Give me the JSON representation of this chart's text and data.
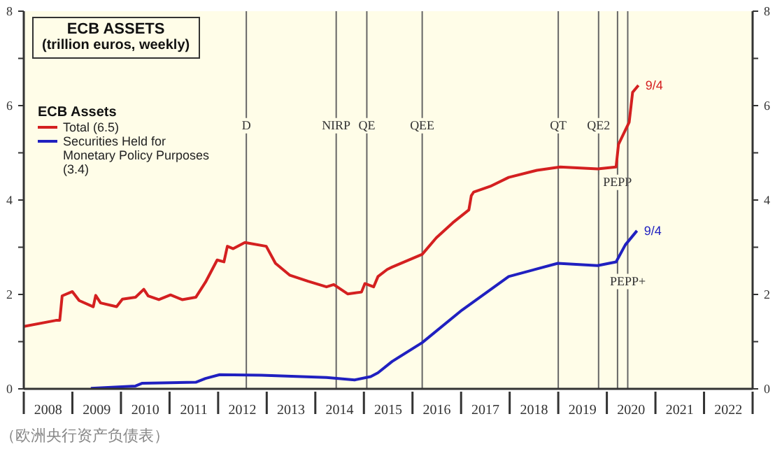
{
  "chart_data": {
    "type": "line",
    "title": "ECB ASSETS",
    "subtitle": "(trillion euros, weekly)",
    "legend_title": "ECB Assets",
    "legend": "top left",
    "marker": "none",
    "line_style": "solid",
    "series": [
      {
        "name": "Total (6.5)",
        "color": "#d42020",
        "x": [
          2008.0,
          2008.66,
          2008.74,
          2008.79,
          2009.0,
          2009.14,
          2009.43,
          2009.48,
          2009.58,
          2009.91,
          2010.03,
          2010.3,
          2010.47,
          2010.56,
          2010.78,
          2011.02,
          2011.26,
          2011.54,
          2011.74,
          2011.98,
          2012.12,
          2012.19,
          2012.31,
          2012.55,
          2012.99,
          2013.18,
          2013.47,
          2013.85,
          2014.23,
          2014.38,
          2014.67,
          2014.95,
          2015.02,
          2015.2,
          2015.29,
          2015.48,
          2015.58,
          2016.2,
          2016.49,
          2016.83,
          2017.16,
          2017.21,
          2017.26,
          2017.6,
          2017.98,
          2018.56,
          2019.04,
          2019.81,
          2020.19,
          2020.24,
          2020.46,
          2020.53,
          2020.65
        ],
        "values": [
          1.32,
          1.45,
          1.45,
          1.97,
          2.06,
          1.87,
          1.74,
          1.98,
          1.82,
          1.74,
          1.9,
          1.94,
          2.11,
          1.97,
          1.89,
          1.99,
          1.89,
          1.94,
          2.26,
          2.73,
          2.69,
          3.02,
          2.97,
          3.1,
          3.02,
          2.66,
          2.41,
          2.28,
          2.16,
          2.21,
          2.01,
          2.05,
          2.23,
          2.16,
          2.38,
          2.53,
          2.58,
          2.85,
          3.2,
          3.52,
          3.79,
          4.09,
          4.17,
          4.29,
          4.48,
          4.63,
          4.7,
          4.66,
          4.7,
          5.18,
          5.65,
          6.28,
          6.43
        ]
      },
      {
        "name": "Securities Held for Monetary Policy Purposes (3.4)",
        "color": "#2020c0",
        "x": [
          2009.38,
          2010.3,
          2010.44,
          2011.54,
          2011.74,
          2012.03,
          2012.89,
          2014.23,
          2014.81,
          2015.14,
          2015.29,
          2015.58,
          2016.2,
          2017.02,
          2017.98,
          2018.99,
          2019.81,
          2020.19,
          2020.38,
          2020.62
        ],
        "values": [
          0.01,
          0.06,
          0.12,
          0.14,
          0.22,
          0.3,
          0.29,
          0.24,
          0.19,
          0.26,
          0.34,
          0.58,
          0.98,
          1.67,
          2.38,
          2.66,
          2.61,
          2.69,
          3.05,
          3.35
        ]
      }
    ],
    "xlim": [
      2008,
      2023
    ],
    "xticks": [
      {
        "value": 2008,
        "label": null
      },
      {
        "value": 2008.5,
        "label": "2008"
      },
      {
        "value": 2009,
        "label": null
      },
      {
        "value": 2009.5,
        "label": "2009"
      },
      {
        "value": 2010,
        "label": null
      },
      {
        "value": 2010.5,
        "label": "2010"
      },
      {
        "value": 2011,
        "label": null
      },
      {
        "value": 2011.5,
        "label": "2011"
      },
      {
        "value": 2012,
        "label": null
      },
      {
        "value": 2012.5,
        "label": "2012"
      },
      {
        "value": 2013,
        "label": null
      },
      {
        "value": 2013.5,
        "label": "2013"
      },
      {
        "value": 2014,
        "label": null
      },
      {
        "value": 2014.5,
        "label": "2014"
      },
      {
        "value": 2015,
        "label": null
      },
      {
        "value": 2015.5,
        "label": "2015"
      },
      {
        "value": 2016,
        "label": null
      },
      {
        "value": 2016.5,
        "label": "2016"
      },
      {
        "value": 2017,
        "label": null
      },
      {
        "value": 2017.5,
        "label": "2017"
      },
      {
        "value": 2018,
        "label": null
      },
      {
        "value": 2018.5,
        "label": "2018"
      },
      {
        "value": 2019,
        "label": null
      },
      {
        "value": 2019.5,
        "label": "2019"
      },
      {
        "value": 2020,
        "label": null
      },
      {
        "value": 2020.5,
        "label": "2020"
      },
      {
        "value": 2021,
        "label": null
      },
      {
        "value": 2021.5,
        "label": "2021"
      },
      {
        "value": 2022,
        "label": null
      },
      {
        "value": 2022.5,
        "label": "2022"
      },
      {
        "value": 2023,
        "label": null
      }
    ],
    "ylim": [
      0,
      8
    ],
    "yticks": [
      0,
      {
        "value": 1,
        "label": null
      },
      2,
      {
        "value": 3,
        "label": null
      },
      4,
      {
        "value": 5,
        "label": null
      },
      6,
      {
        "value": 7,
        "label": null
      },
      8
    ],
    "y2lim": [
      0,
      8
    ],
    "y2ticks": [
      0,
      {
        "value": 1,
        "label": null
      },
      2,
      {
        "value": 3,
        "label": null
      },
      4,
      {
        "value": 5,
        "label": null
      },
      6,
      {
        "value": 7,
        "label": null
      },
      8
    ],
    "ref_lines": [
      {
        "axis": "x",
        "value": 2012.58,
        "label": "D",
        "color": "#666666"
      },
      {
        "axis": "x",
        "value": 2014.43,
        "label": "NIRP",
        "color": "#666666"
      },
      {
        "axis": "x",
        "value": 2015.06,
        "label": "QE",
        "color": "#666666"
      },
      {
        "axis": "x",
        "value": 2016.2,
        "label": "QEE",
        "color": "#666666"
      },
      {
        "axis": "x",
        "value": 2019.0,
        "label": "QT",
        "color": "#666666"
      },
      {
        "axis": "x",
        "value": 2019.83,
        "label": "QE2",
        "color": "#666666"
      },
      {
        "axis": "x",
        "value": 2020.22,
        "label": "PEPP",
        "color": "#666666"
      },
      {
        "axis": "x",
        "value": 2020.43,
        "label": "PEPP+",
        "color": "#666666"
      }
    ],
    "annotations": [
      {
        "text": "9/4",
        "x": 2020.65,
        "y": 6.43
      },
      {
        "text": "9/4",
        "x": 2020.62,
        "y": 3.35
      },
      "（欧洲央行资产负债表）"
    ]
  }
}
